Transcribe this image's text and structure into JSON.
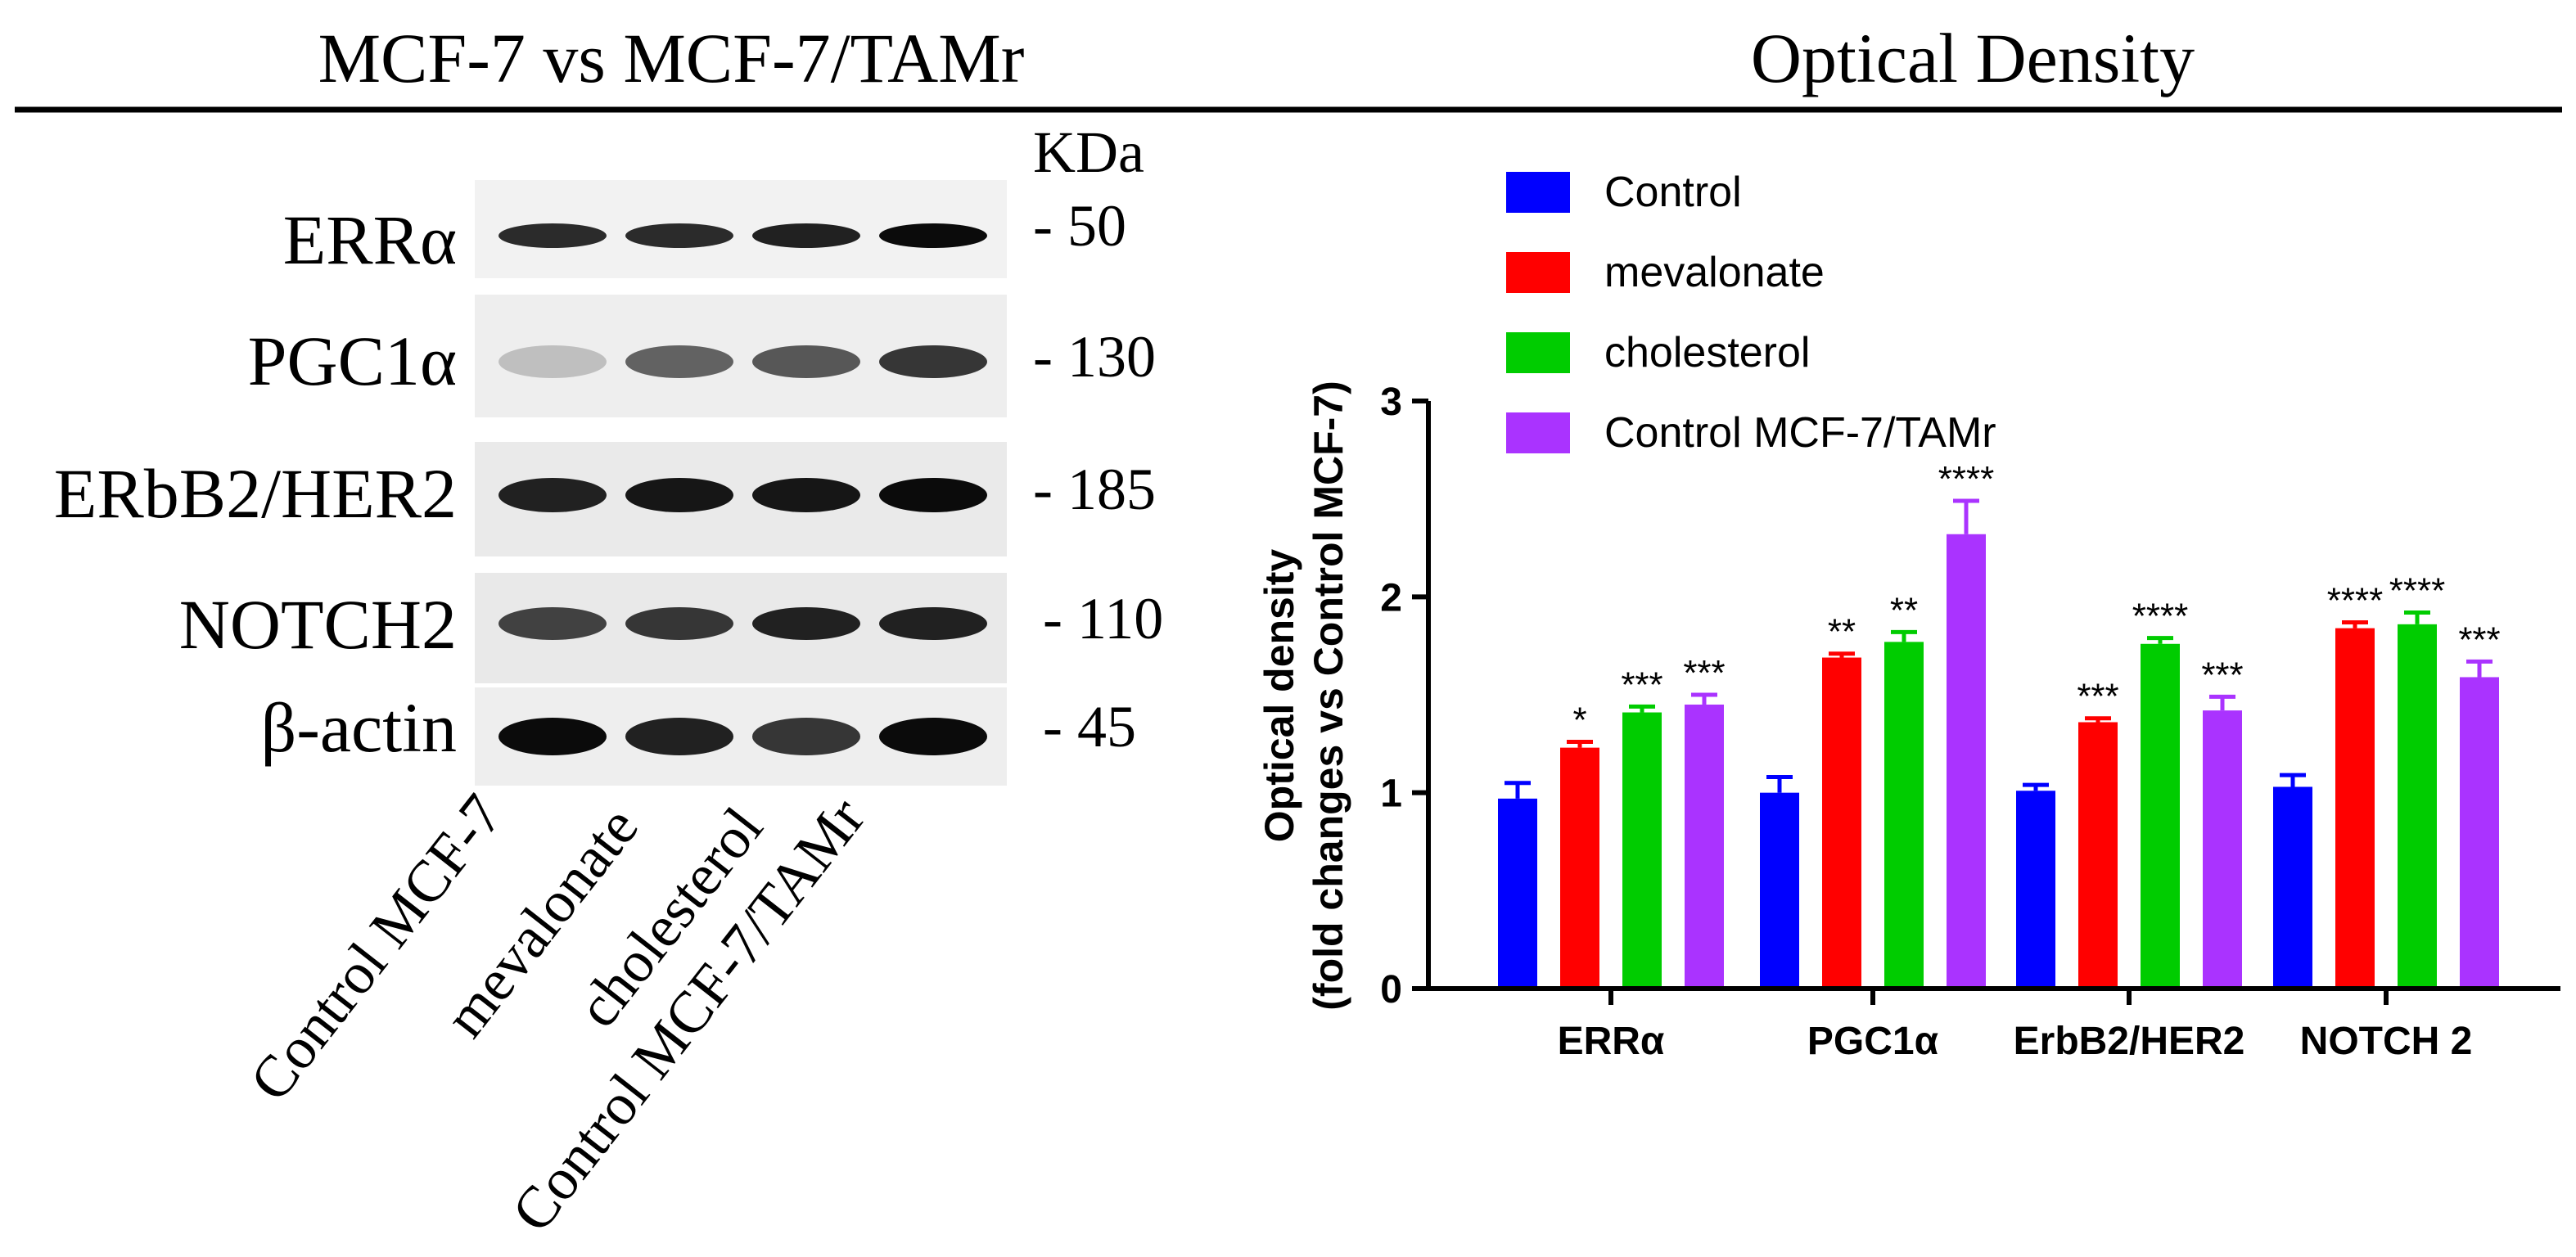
{
  "blot": {
    "title": "MCF-7 vs MCF-7/TAMr",
    "kda_label": "KDa",
    "rows": [
      {
        "label": "ERRα",
        "marker": "- 50"
      },
      {
        "label": "PGC1α",
        "marker": "- 130"
      },
      {
        "label": "ERbB2/HER2",
        "marker": "- 185"
      },
      {
        "label": "NOTCH2",
        "marker": "- 110"
      },
      {
        "label": "β-actin",
        "marker": "- 45"
      }
    ],
    "lanes": [
      "Control MCF-7",
      "mevalonate",
      "cholesterol",
      "Control MCF-7/TAMr"
    ],
    "band_intensity": [
      [
        0.8,
        0.8,
        0.85,
        0.95
      ],
      [
        0.12,
        0.55,
        0.6,
        0.75
      ],
      [
        0.85,
        0.9,
        0.9,
        0.95
      ],
      [
        0.7,
        0.75,
        0.85,
        0.85
      ],
      [
        0.95,
        0.85,
        0.75,
        0.95
      ]
    ]
  },
  "chart_panel_title": "Optical Density",
  "colors": {
    "control": "#0000ff",
    "mevalonate": "#ff0000",
    "cholesterol": "#00cc00",
    "tamr": "#aa33ff"
  },
  "chart_data": {
    "type": "bar",
    "title": "Optical Density",
    "ylabel_line1": "Optical density",
    "ylabel_line2": "(fold changes vs Control MCF-7)",
    "xlabel": "",
    "ylim": [
      0,
      3
    ],
    "yticks": [
      "0",
      "1",
      "2",
      "3"
    ],
    "categories": [
      "ERRα",
      "PGC1α",
      "ErbB2/HER2",
      "NOTCH 2"
    ],
    "series": [
      {
        "name": "Control",
        "color": "#0000ff",
        "values": [
          0.97,
          1.0,
          1.01,
          1.03
        ],
        "errors": [
          0.08,
          0.08,
          0.03,
          0.06
        ],
        "sig": [
          "",
          "",
          "",
          ""
        ]
      },
      {
        "name": "mevalonate",
        "color": "#ff0000",
        "values": [
          1.23,
          1.69,
          1.36,
          1.84
        ],
        "errors": [
          0.03,
          0.02,
          0.02,
          0.03
        ],
        "sig": [
          "*",
          "**",
          "***",
          "****"
        ]
      },
      {
        "name": "cholesterol",
        "color": "#00cc00",
        "values": [
          1.41,
          1.77,
          1.76,
          1.86
        ],
        "errors": [
          0.03,
          0.05,
          0.03,
          0.06
        ],
        "sig": [
          "***",
          "**",
          "****",
          "****"
        ]
      },
      {
        "name": "Control MCF-7/TAMr",
        "color": "#aa33ff",
        "values": [
          1.45,
          2.32,
          1.42,
          1.59
        ],
        "errors": [
          0.05,
          0.17,
          0.07,
          0.08
        ],
        "sig": [
          "***",
          "****",
          "***",
          "***"
        ]
      }
    ],
    "legend_position": "top-left"
  }
}
